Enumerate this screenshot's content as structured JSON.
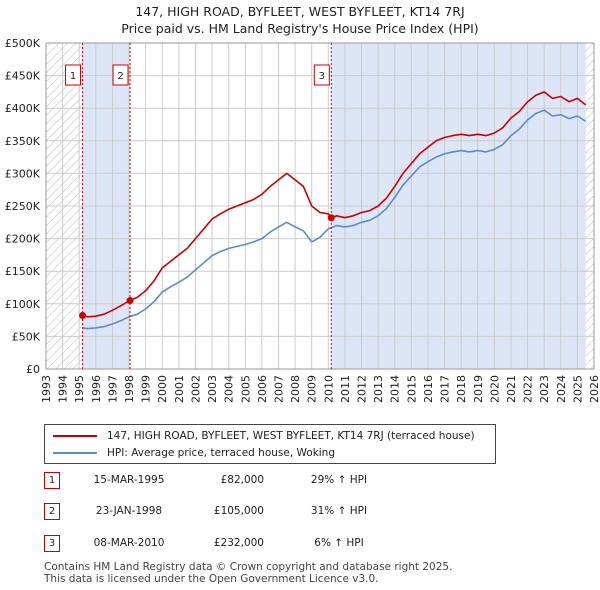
{
  "title": "147, HIGH ROAD, BYFLEET, WEST BYFLEET, KT14 7RJ",
  "subtitle": "Price paid vs. HM Land Registry's House Price Index (HPI)",
  "legend": {
    "price_label": "147, HIGH ROAD, BYFLEET, WEST BYFLEET, KT14 7RJ (terraced house)",
    "hpi_label": "HPI: Average price, terraced house, Woking"
  },
  "sales": [
    {
      "num": "1",
      "date": "15-MAR-1995",
      "price": "£82,000",
      "hpi": "29% ↑ HPI"
    },
    {
      "num": "2",
      "date": "23-JAN-1998",
      "price": "£105,000",
      "hpi": "31% ↑ HPI"
    },
    {
      "num": "3",
      "date": "08-MAR-2010",
      "price": "£232,000",
      "hpi": "6% ↑ HPI"
    }
  ],
  "footer": {
    "line1": "Contains HM Land Registry data © Crown copyright and database right 2025.",
    "line2": "This data is licensed under the Open Government Licence v3.0."
  },
  "colors": {
    "price": "#cc0000",
    "hpi": "#5b8cc8",
    "shade": "#dde6f7",
    "grid": "#cccccc",
    "marker_box": "#cc0000"
  },
  "chart_data": {
    "type": "line",
    "xlim": [
      1993,
      2026
    ],
    "ylim": [
      0,
      500000
    ],
    "x_ticks": [
      "1993",
      "1994",
      "1995",
      "1996",
      "1997",
      "1998",
      "1999",
      "2000",
      "2001",
      "2002",
      "2003",
      "2004",
      "2005",
      "2006",
      "2007",
      "2008",
      "2009",
      "2010",
      "2011",
      "2012",
      "2013",
      "2014",
      "2015",
      "2016",
      "2017",
      "2018",
      "2019",
      "2020",
      "2021",
      "2022",
      "2023",
      "2024",
      "2025",
      "2026"
    ],
    "y_ticks": [
      {
        "value": 0,
        "label": "£0"
      },
      {
        "value": 50000,
        "label": "£50K"
      },
      {
        "value": 100000,
        "label": "£100K"
      },
      {
        "value": 150000,
        "label": "£150K"
      },
      {
        "value": 200000,
        "label": "£200K"
      },
      {
        "value": 250000,
        "label": "£250K"
      },
      {
        "value": 300000,
        "label": "£300K"
      },
      {
        "value": 350000,
        "label": "£350K"
      },
      {
        "value": 400000,
        "label": "£400K"
      },
      {
        "value": 450000,
        "label": "£450K"
      },
      {
        "value": 500000,
        "label": "£500K"
      }
    ],
    "shaded_periods": [
      [
        1995.2,
        1998.06
      ],
      [
        2010.18,
        2025.5
      ]
    ],
    "hatched_regions": [
      [
        1993,
        1995.2
      ],
      [
        2025.5,
        2026
      ]
    ],
    "series": [
      {
        "name": "price",
        "x": [
          1995.2,
          1995.5,
          1996.0,
          1996.5,
          1997.0,
          1997.5,
          1998.06,
          1998.5,
          1999.0,
          1999.5,
          2000.0,
          2000.5,
          2001.0,
          2001.5,
          2002.0,
          2002.5,
          2003.0,
          2003.5,
          2004.0,
          2004.5,
          2005.0,
          2005.5,
          2006.0,
          2006.5,
          2007.0,
          2007.5,
          2008.0,
          2008.5,
          2009.0,
          2009.5,
          2010.0,
          2010.18,
          2010.5,
          2011.0,
          2011.5,
          2012.0,
          2012.5,
          2013.0,
          2013.5,
          2014.0,
          2014.5,
          2015.0,
          2015.5,
          2016.0,
          2016.5,
          2017.0,
          2017.5,
          2018.0,
          2018.5,
          2019.0,
          2019.5,
          2020.0,
          2020.5,
          2021.0,
          2021.5,
          2022.0,
          2022.5,
          2023.0,
          2023.5,
          2024.0,
          2024.5,
          2025.0,
          2025.5
        ],
        "values": [
          82000,
          80000,
          81000,
          84000,
          90000,
          97000,
          105000,
          110000,
          120000,
          135000,
          155000,
          165000,
          175000,
          185000,
          200000,
          215000,
          230000,
          238000,
          245000,
          250000,
          255000,
          260000,
          268000,
          280000,
          290000,
          300000,
          290000,
          280000,
          250000,
          240000,
          238000,
          232000,
          235000,
          232000,
          235000,
          240000,
          243000,
          250000,
          262000,
          280000,
          300000,
          315000,
          330000,
          340000,
          350000,
          355000,
          358000,
          360000,
          358000,
          360000,
          358000,
          362000,
          370000,
          385000,
          395000,
          410000,
          420000,
          425000,
          415000,
          418000,
          410000,
          415000,
          405000
        ]
      },
      {
        "name": "hpi",
        "x": [
          1995.2,
          1995.5,
          1996.0,
          1996.5,
          1997.0,
          1997.5,
          1998.0,
          1998.5,
          1999.0,
          1999.5,
          2000.0,
          2000.5,
          2001.0,
          2001.5,
          2002.0,
          2002.5,
          2003.0,
          2003.5,
          2004.0,
          2004.5,
          2005.0,
          2005.5,
          2006.0,
          2006.5,
          2007.0,
          2007.5,
          2008.0,
          2008.5,
          2009.0,
          2009.5,
          2010.0,
          2010.5,
          2011.0,
          2011.5,
          2012.0,
          2012.5,
          2013.0,
          2013.5,
          2014.0,
          2014.5,
          2015.0,
          2015.5,
          2016.0,
          2016.5,
          2017.0,
          2017.5,
          2018.0,
          2018.5,
          2019.0,
          2019.5,
          2020.0,
          2020.5,
          2021.0,
          2021.5,
          2022.0,
          2022.5,
          2023.0,
          2023.5,
          2024.0,
          2024.5,
          2025.0,
          2025.5
        ],
        "values": [
          63000,
          62000,
          63000,
          65000,
          69000,
          74000,
          80000,
          84000,
          92000,
          103000,
          118000,
          126000,
          133000,
          141000,
          152000,
          163000,
          174000,
          180000,
          185000,
          188000,
          191000,
          195000,
          200000,
          210000,
          218000,
          225000,
          218000,
          212000,
          195000,
          202000,
          215000,
          220000,
          218000,
          220000,
          225000,
          228000,
          235000,
          246000,
          263000,
          282000,
          296000,
          310000,
          318000,
          325000,
          330000,
          333000,
          335000,
          333000,
          335000,
          333000,
          337000,
          344000,
          358000,
          368000,
          382000,
          392000,
          397000,
          388000,
          390000,
          384000,
          388000,
          380000
        ]
      }
    ],
    "sale_points": [
      {
        "label": "1",
        "x": 1995.2,
        "y": 82000
      },
      {
        "label": "2",
        "x": 1998.06,
        "y": 105000
      },
      {
        "label": "3",
        "x": 2010.18,
        "y": 232000
      }
    ]
  }
}
